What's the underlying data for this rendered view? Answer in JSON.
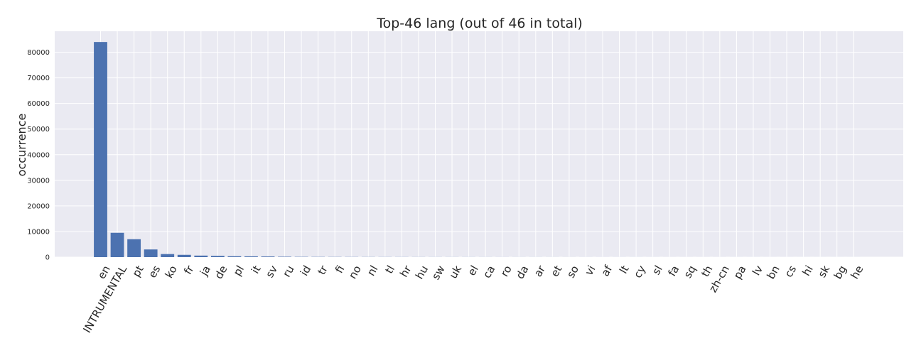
{
  "chart_data": {
    "type": "bar",
    "title": "Top-46 lang (out of 46 in total)",
    "xlabel": "",
    "ylabel": "occurrence",
    "categories": [
      "en",
      "INTRUMENTAL",
      "pt",
      "es",
      "ko",
      "fr",
      "ja",
      "de",
      "pl",
      "it",
      "sv",
      "ru",
      "id",
      "tr",
      "fi",
      "no",
      "nl",
      "tl",
      "hr",
      "hu",
      "sw",
      "uk",
      "el",
      "ca",
      "ro",
      "da",
      "ar",
      "et",
      "so",
      "vi",
      "af",
      "lt",
      "cy",
      "sl",
      "fa",
      "sq",
      "th",
      "zh-cn",
      "pa",
      "lv",
      "bn",
      "cs",
      "hi",
      "sk",
      "bg",
      "he"
    ],
    "values": [
      84000,
      9500,
      7000,
      3000,
      1200,
      900,
      600,
      500,
      350,
      300,
      250,
      150,
      100,
      80,
      70,
      60,
      50,
      45,
      40,
      35,
      30,
      28,
      25,
      22,
      20,
      18,
      16,
      15,
      14,
      13,
      12,
      11,
      10,
      9,
      8,
      8,
      7,
      7,
      6,
      6,
      5,
      5,
      4,
      4,
      3,
      3
    ],
    "yticks": [
      0,
      10000,
      20000,
      30000,
      40000,
      50000,
      60000,
      70000,
      80000
    ],
    "ylim": [
      0,
      88200
    ],
    "grid": true,
    "bar_color": "#4c72b0",
    "background_color": "#eaeaf2"
  }
}
